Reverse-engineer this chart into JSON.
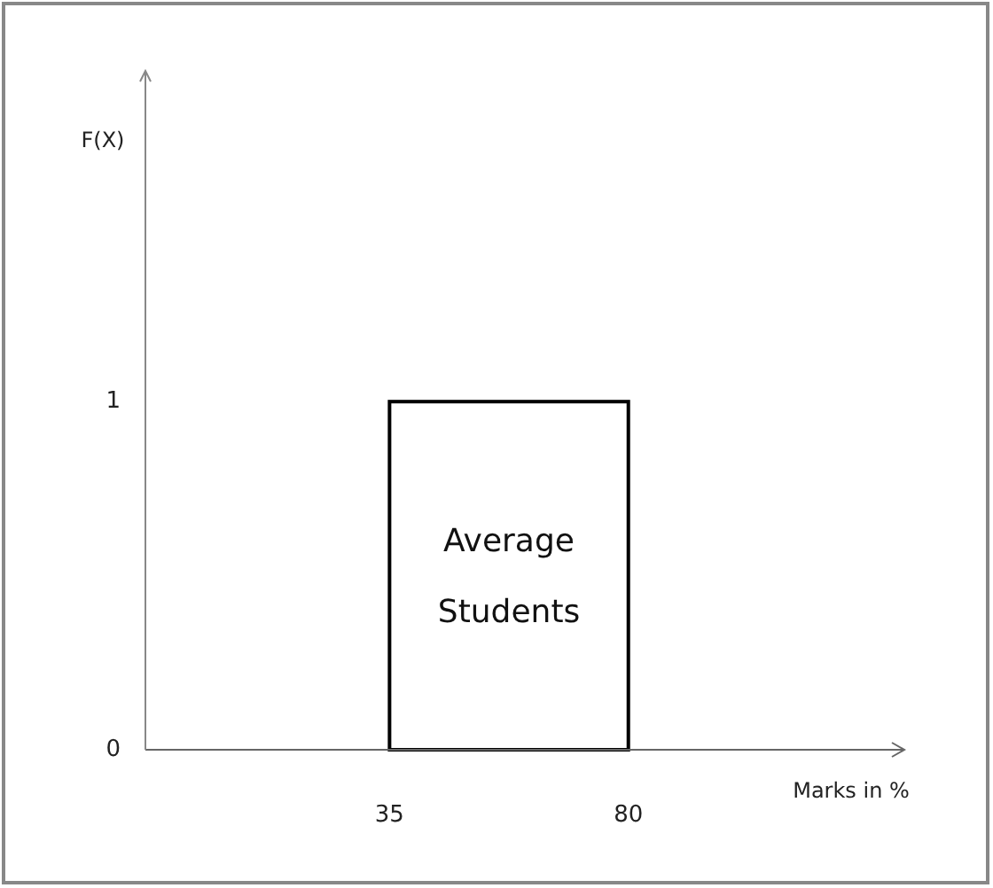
{
  "chart_data": {
    "type": "histogram",
    "xlabel": "Marks in %",
    "ylabel": "F(X)",
    "bins": [
      35,
      80
    ],
    "values": [
      1
    ],
    "color": "#000000",
    "xlim": [
      -11,
      132
    ],
    "xticks": [
      35,
      80
    ],
    "ylim": [
      0,
      1.95
    ],
    "yticks": [
      0,
      1
    ],
    "grid": false,
    "annotations": [
      "Average Students"
    ]
  }
}
